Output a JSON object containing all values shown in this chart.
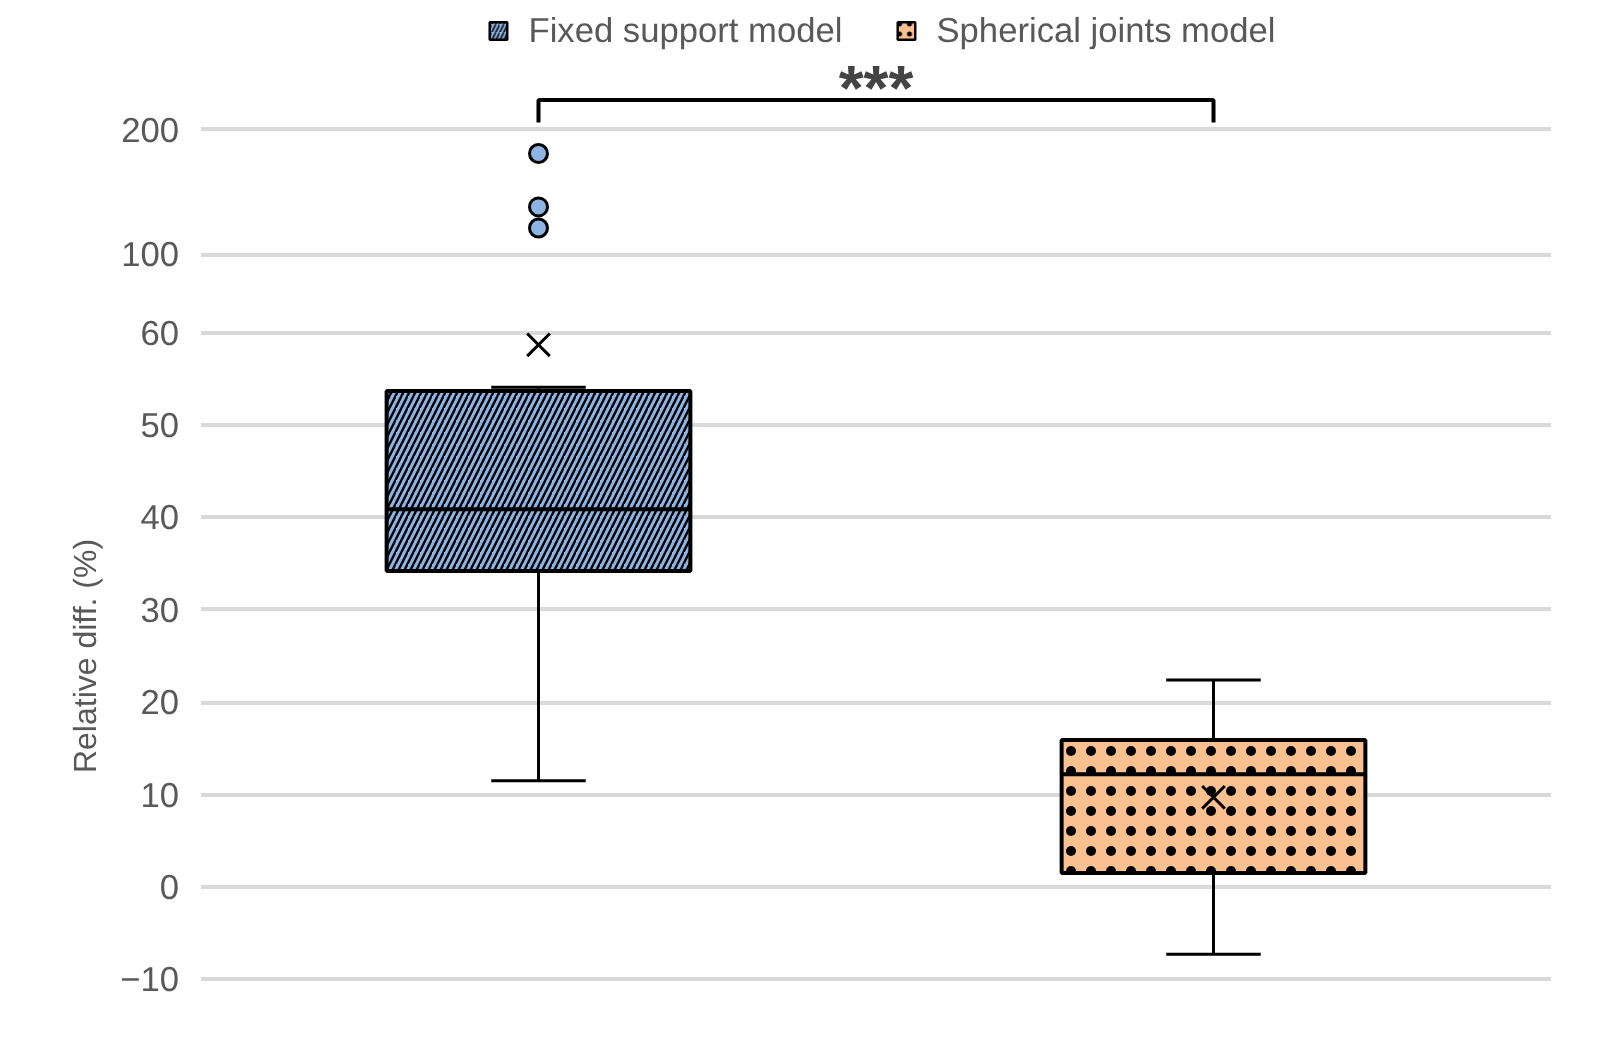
{
  "chart_data": [
    {
      "type": "scatter",
      "categories": [
        null,
        null
      ],
      "ylim": [
        100,
        200
      ],
      "yticks": [
        100,
        200
      ],
      "grid": "y",
      "tick_labels": "y",
      "legend": "top",
      "marker": "circle",
      "annotations": [
        "***"
      ],
      "series": [
        {
          "name": "Fixed support model",
          "color": "#8db4e2",
          "values": [
            181,
            null
          ]
        },
        {
          "color": "#8db4e2",
          "values": [
            138,
            null
          ]
        },
        {
          "color": "#8db4e2",
          "values": [
            121,
            null
          ]
        },
        {
          "name": "Spherical joints model",
          "color": "#fac090",
          "values": [
            null,
            null
          ]
        }
      ]
    },
    {
      "type": "box",
      "categories": [
        null,
        null
      ],
      "ylim": [
        -10,
        60
      ],
      "yticks": [
        -10,
        0,
        10,
        20,
        30,
        40,
        50,
        60
      ],
      "ylabel": "Relative diff. (%)",
      "grid": "y",
      "tick_labels": "y",
      "series": [
        {
          "color": "#8db4e2",
          "boxes": [
            {
              "low": 11.5,
              "q1": 34.2,
              "median": 40.9,
              "q3": 53.7,
              "high": 54.1,
              "mean": 58.7
            },
            null
          ]
        },
        {
          "color": "#fac090",
          "boxes": [
            null,
            {
              "low": -7.3,
              "q1": 1.5,
              "median": 12.2,
              "q3": 15.9,
              "high": 22.4,
              "mean": 9.7
            }
          ]
        }
      ]
    }
  ]
}
